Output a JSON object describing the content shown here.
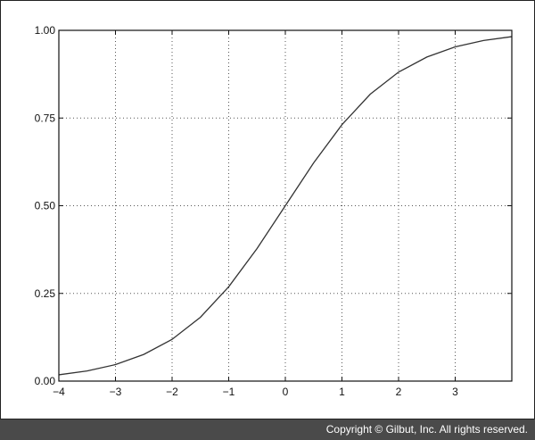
{
  "chart_data": {
    "type": "line",
    "function": "sigmoid",
    "xlim": [
      -4,
      4
    ],
    "ylim": [
      0,
      1
    ],
    "xticks": [
      -4,
      -3,
      -2,
      -1,
      0,
      1,
      2,
      3
    ],
    "xtick_labels": [
      "−4",
      "−3",
      "−2",
      "−1",
      "0",
      "1",
      "2",
      "3"
    ],
    "yticks": [
      0,
      0.25,
      0.5,
      0.75,
      1
    ],
    "ytick_labels": [
      "0.00",
      "0.25",
      "0.50",
      "0.75",
      "1.00"
    ],
    "grid": true,
    "series": [
      {
        "x": [
          -4,
          -3.5,
          -3,
          -2.5,
          -2,
          -1.5,
          -1,
          -0.5,
          0,
          0.5,
          1,
          1.5,
          2,
          2.5,
          3,
          3.5,
          4
        ],
        "y": [
          0.018,
          0.029,
          0.047,
          0.076,
          0.119,
          0.182,
          0.269,
          0.378,
          0.5,
          0.622,
          0.731,
          0.818,
          0.881,
          0.924,
          0.953,
          0.971,
          0.982
        ]
      }
    ]
  },
  "footer": {
    "copyright": "Copyright © Gilbut, Inc. All rights reserved."
  }
}
